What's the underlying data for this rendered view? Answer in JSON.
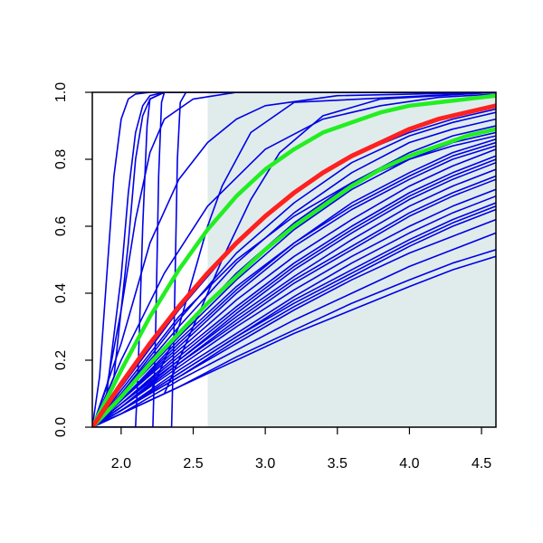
{
  "chart_data": {
    "type": "line",
    "title": "",
    "xlabel": "",
    "ylabel": "",
    "xlim": [
      1.8,
      4.6
    ],
    "ylim": [
      0.0,
      1.0
    ],
    "x_ticks": [
      "2.0",
      "2.5",
      "3.0",
      "3.5",
      "4.0",
      "4.5"
    ],
    "y_ticks": [
      "0.0",
      "0.2",
      "0.4",
      "0.6",
      "0.8",
      "1.0"
    ],
    "grid": false,
    "shaded_region": {
      "x_start": 2.6,
      "x_end": 4.6,
      "color": "#e0ecec"
    },
    "colors": {
      "sample": "#0000e6",
      "mean": "#ff2020",
      "band": "#22ee22",
      "axis": "#000000"
    },
    "series": [
      {
        "role": "band-upper",
        "x": [
          1.8,
          2.0,
          2.2,
          2.4,
          2.6,
          2.8,
          3.0,
          3.2,
          3.4,
          3.6,
          3.8,
          4.0,
          4.2,
          4.4,
          4.6
        ],
        "values": [
          0.0,
          0.17,
          0.33,
          0.47,
          0.59,
          0.69,
          0.77,
          0.83,
          0.88,
          0.91,
          0.94,
          0.96,
          0.97,
          0.98,
          0.99
        ]
      },
      {
        "role": "mean",
        "x": [
          1.8,
          2.0,
          2.2,
          2.4,
          2.6,
          2.8,
          3.0,
          3.2,
          3.4,
          3.6,
          3.8,
          4.0,
          4.2,
          4.4,
          4.6
        ],
        "values": [
          0.0,
          0.13,
          0.25,
          0.36,
          0.46,
          0.55,
          0.63,
          0.7,
          0.76,
          0.81,
          0.85,
          0.89,
          0.92,
          0.94,
          0.96
        ]
      },
      {
        "role": "band-lower",
        "x": [
          1.8,
          2.0,
          2.2,
          2.4,
          2.6,
          2.8,
          3.0,
          3.2,
          3.4,
          3.6,
          3.8,
          4.0,
          4.2,
          4.4,
          4.6
        ],
        "values": [
          0.0,
          0.09,
          0.19,
          0.28,
          0.37,
          0.45,
          0.53,
          0.6,
          0.66,
          0.72,
          0.77,
          0.81,
          0.84,
          0.87,
          0.89
        ]
      },
      {
        "role": "sample",
        "x": [
          1.8,
          1.85,
          1.9,
          1.95,
          2.0,
          2.05,
          2.1,
          2.2,
          2.4,
          4.6
        ],
        "values": [
          0.0,
          0.15,
          0.45,
          0.75,
          0.92,
          0.98,
          0.995,
          1.0,
          1.0,
          1.0
        ]
      },
      {
        "role": "sample",
        "x": [
          1.8,
          1.9,
          2.0,
          2.05,
          2.1,
          2.15,
          2.2,
          2.3,
          4.6
        ],
        "values": [
          0.0,
          0.1,
          0.45,
          0.7,
          0.88,
          0.96,
          0.99,
          1.0,
          1.0
        ]
      },
      {
        "role": "sample",
        "x": [
          1.8,
          1.95,
          2.05,
          2.1,
          2.15,
          2.2,
          2.3,
          4.6
        ],
        "values": [
          0.0,
          0.15,
          0.55,
          0.8,
          0.93,
          0.98,
          1.0,
          1.0
        ]
      },
      {
        "role": "sample",
        "x": [
          1.8,
          1.9,
          2.0,
          2.1,
          2.2,
          2.3,
          2.5,
          2.8,
          4.6
        ],
        "values": [
          0.0,
          0.12,
          0.35,
          0.62,
          0.82,
          0.92,
          0.98,
          1.0,
          1.0
        ]
      },
      {
        "role": "sample",
        "x": [
          1.8,
          2.0,
          2.2,
          2.4,
          2.6,
          2.8,
          3.0,
          3.5,
          4.6
        ],
        "values": [
          0.0,
          0.25,
          0.55,
          0.74,
          0.85,
          0.92,
          0.96,
          0.99,
          1.0
        ]
      },
      {
        "role": "sample",
        "x": [
          1.8,
          2.0,
          2.3,
          2.6,
          3.0,
          3.4,
          3.8,
          4.2,
          4.6
        ],
        "values": [
          0.0,
          0.2,
          0.46,
          0.66,
          0.83,
          0.92,
          0.96,
          0.985,
          0.995
        ]
      },
      {
        "role": "sample",
        "x": [
          1.8,
          2.1,
          2.12,
          2.15,
          2.18,
          2.2,
          2.3,
          4.6
        ],
        "values": [
          0.0,
          0.0,
          0.2,
          0.6,
          0.9,
          0.98,
          1.0,
          1.0
        ]
      },
      {
        "role": "sample",
        "x": [
          1.8,
          2.22,
          2.24,
          2.26,
          2.28,
          2.3,
          4.6
        ],
        "values": [
          0.0,
          0.0,
          0.3,
          0.75,
          0.97,
          1.0,
          1.0
        ]
      },
      {
        "role": "sample",
        "x": [
          1.8,
          2.35,
          2.37,
          2.39,
          2.41,
          2.45,
          4.6
        ],
        "values": [
          0.0,
          0.0,
          0.35,
          0.8,
          0.97,
          1.0,
          1.0
        ]
      },
      {
        "role": "sample",
        "x": [
          1.8,
          2.2,
          2.4,
          2.5,
          2.6,
          2.7,
          2.9,
          3.2,
          4.6
        ],
        "values": [
          0.0,
          0.1,
          0.3,
          0.45,
          0.6,
          0.72,
          0.88,
          0.97,
          1.0
        ]
      },
      {
        "role": "sample",
        "x": [
          1.8,
          2.3,
          2.5,
          2.7,
          2.9,
          3.1,
          3.4,
          3.8,
          4.6
        ],
        "values": [
          0.0,
          0.1,
          0.3,
          0.5,
          0.68,
          0.82,
          0.93,
          0.98,
          1.0
        ]
      },
      {
        "role": "sample",
        "x": [
          1.8,
          2.0,
          2.4,
          2.8,
          3.2,
          3.6,
          4.0,
          4.3,
          4.6
        ],
        "values": [
          0.0,
          0.12,
          0.35,
          0.55,
          0.7,
          0.81,
          0.88,
          0.92,
          0.95
        ]
      },
      {
        "role": "sample",
        "x": [
          1.8,
          2.0,
          2.4,
          2.8,
          3.2,
          3.6,
          4.0,
          4.3,
          4.6
        ],
        "values": [
          0.0,
          0.1,
          0.3,
          0.49,
          0.64,
          0.76,
          0.85,
          0.89,
          0.92
        ]
      },
      {
        "role": "sample",
        "x": [
          1.8,
          2.0,
          2.4,
          2.8,
          3.2,
          3.6,
          4.0,
          4.3,
          4.6
        ],
        "values": [
          0.0,
          0.09,
          0.27,
          0.44,
          0.59,
          0.71,
          0.8,
          0.85,
          0.88
        ]
      },
      {
        "role": "sample",
        "x": [
          1.8,
          2.0,
          2.4,
          2.8,
          3.2,
          3.6,
          4.0,
          4.3,
          4.6
        ],
        "values": [
          0.0,
          0.08,
          0.25,
          0.41,
          0.55,
          0.67,
          0.76,
          0.82,
          0.86
        ]
      },
      {
        "role": "sample",
        "x": [
          1.8,
          2.0,
          2.4,
          2.8,
          3.2,
          3.6,
          4.0,
          4.3,
          4.6
        ],
        "values": [
          0.0,
          0.08,
          0.23,
          0.38,
          0.51,
          0.62,
          0.72,
          0.78,
          0.83
        ]
      },
      {
        "role": "sample",
        "x": [
          1.8,
          2.0,
          2.4,
          2.8,
          3.2,
          3.6,
          4.0,
          4.3,
          4.6
        ],
        "values": [
          0.0,
          0.07,
          0.21,
          0.35,
          0.48,
          0.59,
          0.69,
          0.75,
          0.8
        ]
      },
      {
        "role": "sample",
        "x": [
          1.8,
          2.0,
          2.4,
          2.8,
          3.2,
          3.6,
          4.0,
          4.3,
          4.6
        ],
        "values": [
          0.0,
          0.07,
          0.2,
          0.33,
          0.45,
          0.56,
          0.66,
          0.72,
          0.77
        ]
      },
      {
        "role": "sample",
        "x": [
          1.8,
          2.0,
          2.4,
          2.8,
          3.2,
          3.6,
          4.0,
          4.3,
          4.6
        ],
        "values": [
          0.0,
          0.06,
          0.19,
          0.31,
          0.43,
          0.53,
          0.63,
          0.69,
          0.74
        ]
      },
      {
        "role": "sample",
        "x": [
          1.8,
          2.0,
          2.4,
          2.8,
          3.2,
          3.6,
          4.0,
          4.3,
          4.6
        ],
        "values": [
          0.0,
          0.06,
          0.18,
          0.3,
          0.41,
          0.51,
          0.6,
          0.66,
          0.71
        ]
      },
      {
        "role": "sample",
        "x": [
          1.8,
          2.0,
          2.4,
          2.8,
          3.2,
          3.6,
          4.0,
          4.3,
          4.6
        ],
        "values": [
          0.0,
          0.05,
          0.16,
          0.27,
          0.38,
          0.47,
          0.56,
          0.62,
          0.67
        ]
      },
      {
        "role": "sample",
        "x": [
          1.8,
          2.0,
          2.4,
          2.8,
          3.2,
          3.6,
          4.0,
          4.3,
          4.6
        ],
        "values": [
          0.0,
          0.05,
          0.15,
          0.25,
          0.35,
          0.44,
          0.52,
          0.57,
          0.62
        ]
      },
      {
        "role": "sample",
        "x": [
          1.8,
          2.0,
          2.4,
          2.8,
          3.2,
          3.6,
          4.0,
          4.3,
          4.6
        ],
        "values": [
          0.0,
          0.04,
          0.14,
          0.23,
          0.32,
          0.4,
          0.48,
          0.53,
          0.58
        ]
      },
      {
        "role": "sample",
        "x": [
          1.8,
          2.0,
          2.4,
          2.8,
          3.2,
          3.6,
          4.0,
          4.3,
          4.6
        ],
        "values": [
          0.0,
          0.04,
          0.12,
          0.21,
          0.29,
          0.37,
          0.44,
          0.49,
          0.53
        ]
      },
      {
        "role": "sample",
        "x": [
          1.8,
          2.0,
          2.4,
          2.8,
          3.2,
          3.6,
          4.0,
          4.3,
          4.6
        ],
        "values": [
          0.0,
          0.04,
          0.12,
          0.2,
          0.28,
          0.35,
          0.42,
          0.47,
          0.51
        ]
      },
      {
        "role": "sample",
        "x": [
          1.8,
          2.0,
          2.4,
          2.8,
          3.2,
          3.6,
          4.0,
          4.3,
          4.6
        ],
        "values": [
          0.0,
          0.1,
          0.32,
          0.52,
          0.67,
          0.79,
          0.87,
          0.91,
          0.94
        ]
      },
      {
        "role": "sample",
        "x": [
          1.8,
          2.0,
          2.4,
          2.8,
          3.2,
          3.6,
          4.0,
          4.3,
          4.6
        ],
        "values": [
          0.0,
          0.09,
          0.28,
          0.46,
          0.61,
          0.73,
          0.82,
          0.87,
          0.9
        ]
      },
      {
        "role": "sample",
        "x": [
          1.8,
          2.0,
          2.4,
          2.8,
          3.2,
          3.6,
          4.0,
          4.3,
          4.6
        ],
        "values": [
          0.0,
          0.08,
          0.24,
          0.4,
          0.54,
          0.65,
          0.74,
          0.8,
          0.84
        ]
      },
      {
        "role": "sample",
        "x": [
          1.8,
          2.0,
          2.4,
          2.8,
          3.2,
          3.6,
          4.0,
          4.3,
          4.6
        ],
        "values": [
          0.0,
          0.07,
          0.22,
          0.36,
          0.49,
          0.6,
          0.7,
          0.76,
          0.81
        ]
      },
      {
        "role": "sample",
        "x": [
          1.8,
          2.0,
          2.4,
          2.8,
          3.2,
          3.6,
          4.0,
          4.3,
          4.6
        ],
        "values": [
          0.0,
          0.06,
          0.19,
          0.32,
          0.44,
          0.54,
          0.64,
          0.7,
          0.75
        ]
      },
      {
        "role": "sample",
        "x": [
          1.8,
          2.0,
          2.4,
          2.8,
          3.2,
          3.6,
          4.0,
          4.3,
          4.6
        ],
        "values": [
          0.0,
          0.05,
          0.17,
          0.28,
          0.39,
          0.49,
          0.58,
          0.64,
          0.69
        ]
      },
      {
        "role": "sample",
        "x": [
          1.8,
          2.0,
          2.4,
          2.8,
          3.2,
          3.6,
          4.0,
          4.3,
          4.6
        ],
        "values": [
          0.0,
          0.05,
          0.15,
          0.26,
          0.36,
          0.45,
          0.54,
          0.6,
          0.65
        ]
      },
      {
        "role": "sample",
        "x": [
          1.8,
          2.0,
          2.4,
          2.8,
          3.2,
          3.6,
          4.0,
          4.3,
          4.6
        ],
        "values": [
          0.0,
          0.11,
          0.33,
          0.5,
          0.63,
          0.73,
          0.8,
          0.84,
          0.87
        ]
      },
      {
        "role": "sample",
        "x": [
          1.8,
          2.0,
          2.4,
          2.8,
          3.2,
          3.6,
          4.0,
          4.3,
          4.6
        ],
        "values": [
          0.0,
          0.08,
          0.26,
          0.42,
          0.55,
          0.66,
          0.75,
          0.81,
          0.85
        ]
      },
      {
        "role": "sample",
        "x": [
          1.8,
          2.0,
          2.4,
          2.8,
          3.2,
          3.6,
          4.0,
          4.3,
          4.6
        ],
        "values": [
          0.0,
          0.06,
          0.2,
          0.34,
          0.47,
          0.58,
          0.68,
          0.74,
          0.79
        ]
      },
      {
        "role": "sample",
        "x": [
          1.8,
          2.0,
          2.4,
          2.8,
          3.2,
          3.6,
          4.0,
          4.3,
          4.6
        ],
        "values": [
          0.0,
          0.05,
          0.16,
          0.27,
          0.37,
          0.46,
          0.55,
          0.61,
          0.66
        ]
      }
    ]
  }
}
